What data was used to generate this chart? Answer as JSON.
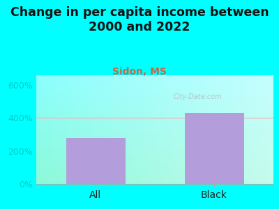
{
  "title": "Change in per capita income between\n2000 and 2022",
  "subtitle": "Sidon, MS",
  "categories": [
    "All",
    "Black"
  ],
  "values": [
    280,
    430
  ],
  "bar_color": "#b39ddb",
  "figure_bg": "#00ffff",
  "plot_bg_color_top": "#ffffff",
  "plot_bg_color_bottom": "#d8f5d8",
  "title_fontsize": 12.5,
  "subtitle_fontsize": 10,
  "subtitle_color": "#cc6644",
  "title_color": "#111111",
  "yticks": [
    0,
    200,
    400,
    600
  ],
  "ylim": [
    0,
    660
  ],
  "tick_color": "#00cccc",
  "grid_color": "#ffaaaa",
  "watermark": "City-Data.com"
}
